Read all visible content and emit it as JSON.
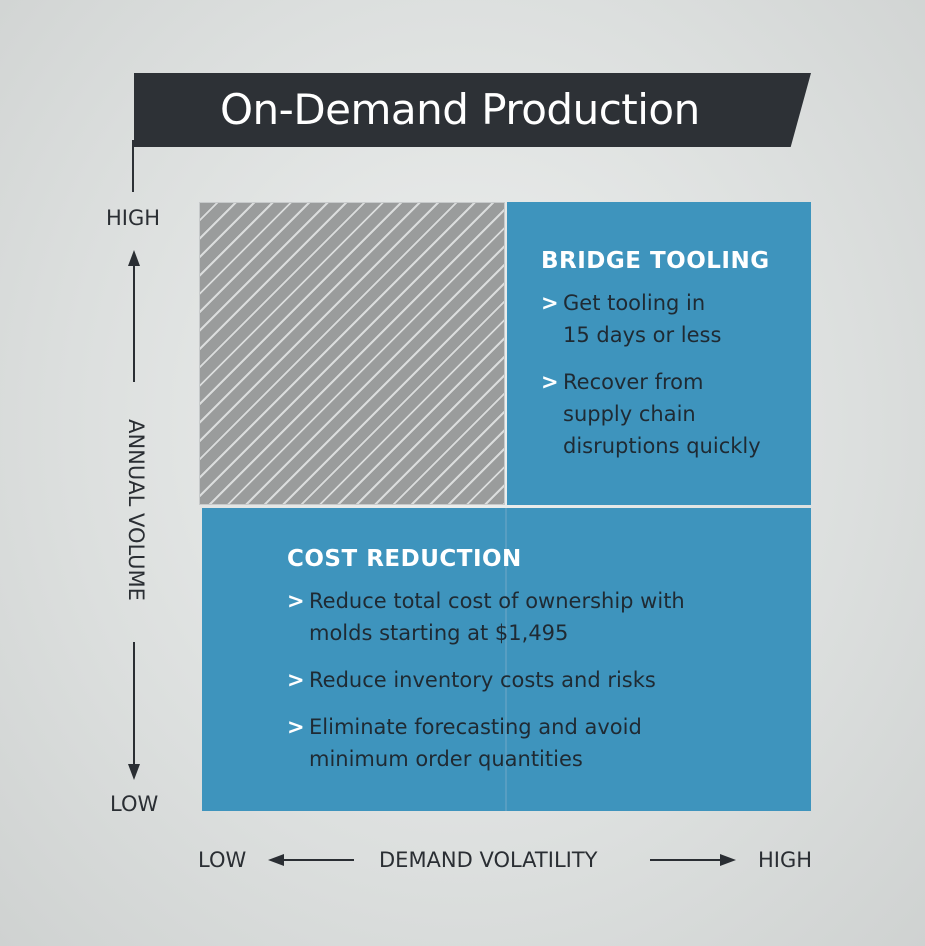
{
  "title": "On-Demand Production",
  "y_axis": {
    "label": "ANNUAL VOLUME",
    "high": "HIGH",
    "low": "LOW"
  },
  "x_axis": {
    "label": "DEMAND VOLATILITY",
    "low": "LOW",
    "high": "HIGH"
  },
  "quadrants": {
    "bridge_tooling": {
      "title": "BRIDGE TOOLING",
      "bullets": [
        {
          "lines": [
            "Get tooling in",
            "15 days or less"
          ]
        },
        {
          "lines": [
            "Recover from",
            "supply chain",
            "disruptions quickly"
          ]
        }
      ]
    },
    "cost_reduction": {
      "title": "COST REDUCTION",
      "bullets": [
        {
          "lines": [
            "Reduce total cost of ownership with",
            "molds starting at $1,495"
          ]
        },
        {
          "lines": [
            "Reduce inventory costs and risks"
          ]
        },
        {
          "lines": [
            "Eliminate forecasting and avoid",
            "minimum order quantities"
          ]
        }
      ]
    }
  },
  "bullet_marker": ">",
  "colors": {
    "banner": "#2d3136",
    "quadrant_blue": "#3e94bd",
    "hatch_gray": "#9a9c9c",
    "background": "#dcdfde"
  }
}
